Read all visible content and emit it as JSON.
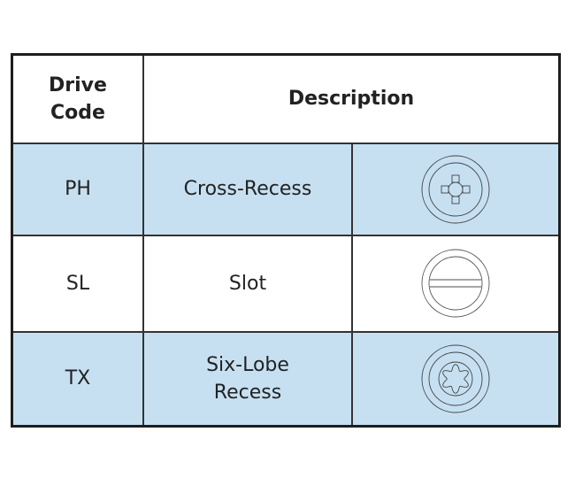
{
  "header": {
    "drive_code_line1": "Drive",
    "drive_code_line2": "Code",
    "description": "Description"
  },
  "rows": [
    {
      "code": "PH",
      "description": "Cross-Recess",
      "icon": "phillips-cross-recess-icon"
    },
    {
      "code": "SL",
      "description": "Slot",
      "icon": "slot-icon"
    },
    {
      "code": "TX",
      "description_line1": "Six-Lobe",
      "description_line2": "Recess",
      "icon": "six-lobe-torx-icon"
    }
  ],
  "colors": {
    "row_highlight": "#c6e0f2",
    "border": "#1e1e1e"
  }
}
